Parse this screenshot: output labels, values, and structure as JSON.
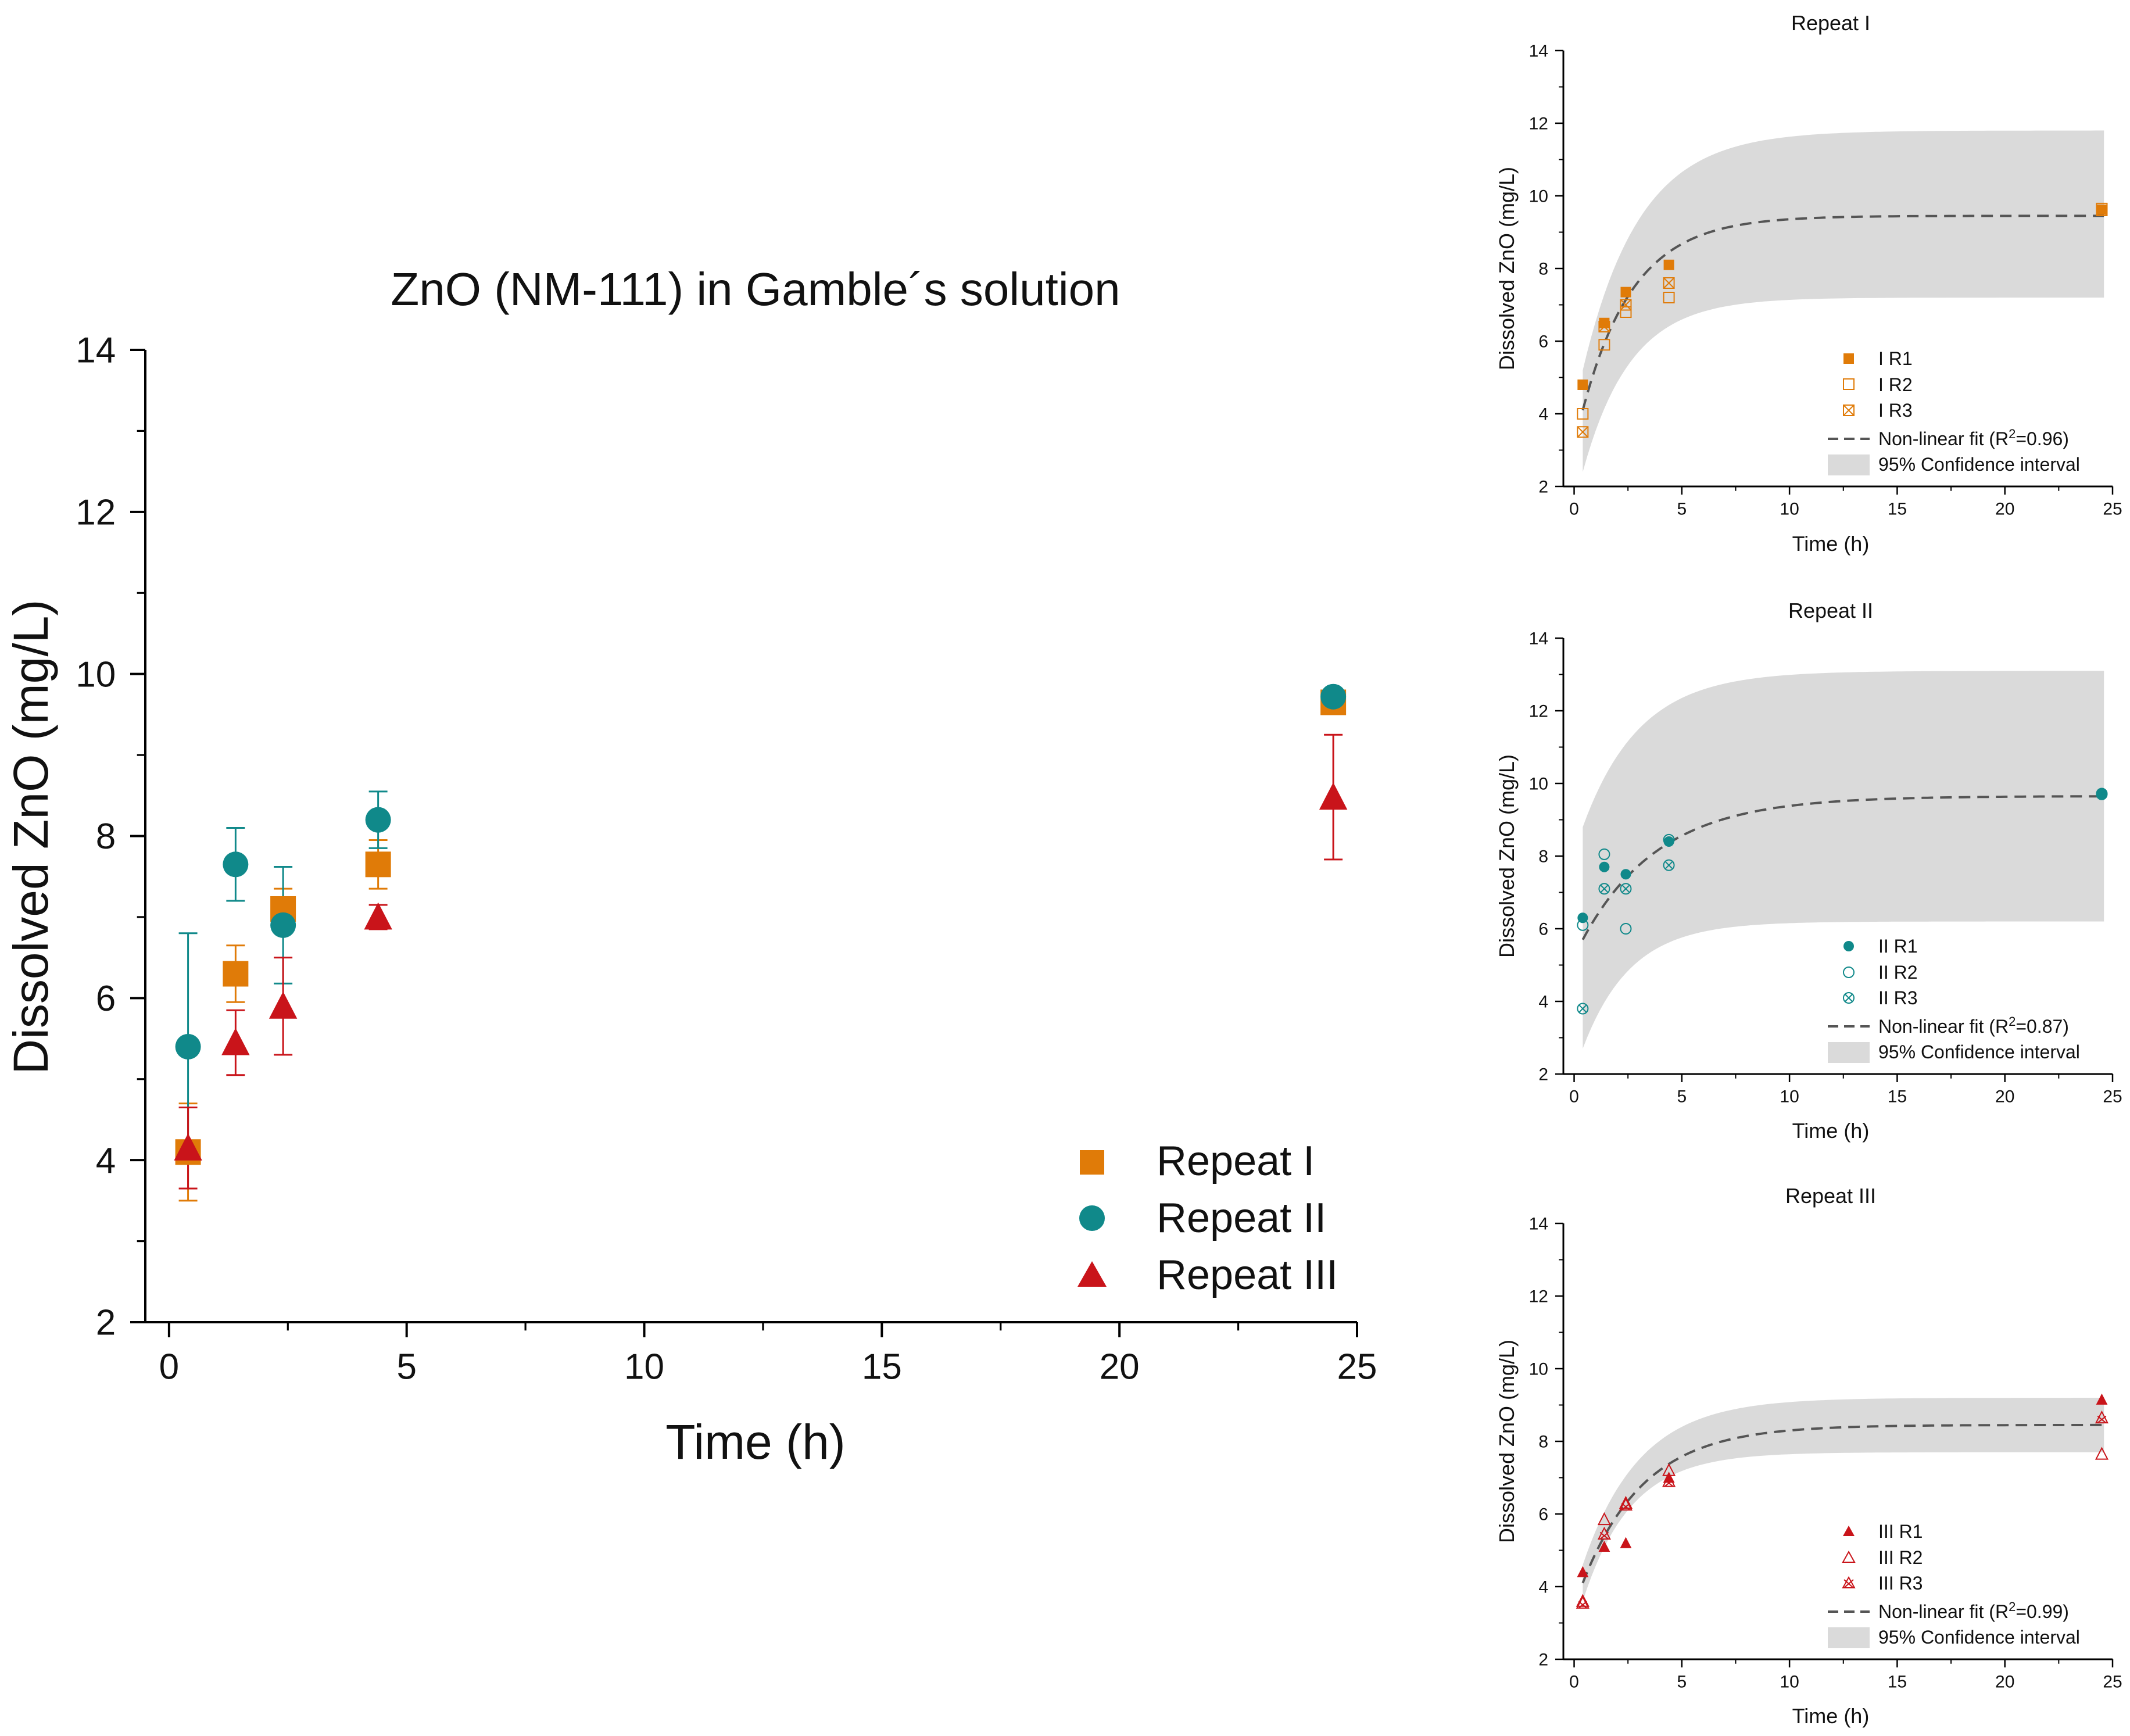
{
  "colors": {
    "repeat_I": "#e07b08",
    "repeat_II": "#10898a",
    "repeat_III": "#c9141a",
    "fit": "#555555",
    "ci": "#dadada"
  },
  "chart_data": [
    {
      "type": "scatter",
      "title": "ZnO (NM-111) in Gamble´s solution",
      "xlabel": "Time (h)",
      "ylabel": "Dissolved ZnO (mg/L)",
      "xlim": [
        -0.5,
        25
      ],
      "ylim": [
        2,
        14
      ],
      "xticks": [
        "0",
        "5",
        "10",
        "15",
        "20",
        "25"
      ],
      "yticks": [
        "2",
        "4",
        "6",
        "8",
        "10",
        "12",
        "14"
      ],
      "legend_position": "bottom-right",
      "error_bars": true,
      "series": [
        {
          "name": "Repeat I",
          "marker": "square",
          "color": "#e07b08",
          "x": [
            0.4,
            1.4,
            2.4,
            4.4,
            24.5
          ],
          "y": [
            4.1,
            6.3,
            7.1,
            7.65,
            9.65
          ],
          "err": [
            0.6,
            0.35,
            0.25,
            0.3,
            0.1
          ]
        },
        {
          "name": "Repeat II",
          "marker": "circle",
          "color": "#10898a",
          "x": [
            0.4,
            1.4,
            2.4,
            4.4,
            24.5
          ],
          "y": [
            5.4,
            7.65,
            6.9,
            8.2,
            9.72
          ],
          "err": [
            1.4,
            0.45,
            0.72,
            0.35,
            0.05
          ]
        },
        {
          "name": "Repeat III",
          "marker": "triangle",
          "color": "#c9141a",
          "x": [
            0.4,
            1.4,
            2.4,
            4.4,
            24.5
          ],
          "y": [
            4.15,
            5.45,
            5.9,
            7.0,
            8.48
          ],
          "err": [
            0.5,
            0.4,
            0.6,
            0.15,
            0.77
          ]
        }
      ]
    },
    {
      "type": "scatter",
      "title": "Repeat I",
      "xlabel": "Time (h)",
      "ylabel": "Dissolved ZnO (mg/L)",
      "xlim": [
        -0.5,
        25
      ],
      "ylim": [
        2,
        14
      ],
      "xticks": [
        "0",
        "5",
        "10",
        "15",
        "20",
        "25"
      ],
      "yticks": [
        "2",
        "4",
        "6",
        "8",
        "10",
        "12",
        "14"
      ],
      "legend_position": "bottom-right",
      "series": [
        {
          "name": "I R1",
          "marker": "square-filled",
          "color": "#e07b08",
          "x": [
            0.4,
            1.4,
            2.4,
            4.4,
            24.5
          ],
          "y": [
            4.8,
            6.5,
            7.35,
            8.1,
            9.62
          ]
        },
        {
          "name": "I R2",
          "marker": "square-open",
          "color": "#e07b08",
          "x": [
            0.4,
            1.4,
            2.4,
            4.4,
            24.5
          ],
          "y": [
            4.0,
            5.9,
            6.8,
            7.2,
            9.65
          ]
        },
        {
          "name": "I R3",
          "marker": "square-cross",
          "color": "#e07b08",
          "x": [
            0.4,
            1.4,
            2.4,
            4.4,
            24.5
          ],
          "y": [
            3.5,
            6.4,
            7.0,
            7.6,
            9.6
          ]
        }
      ],
      "fit": {
        "label": "Non-linear fit (R",
        "sup": "2",
        "r2": "=0.96)",
        "plateau": 9.45,
        "y0": 4.1,
        "k": 0.42,
        "t0": 0.4
      },
      "ci": {
        "label": "95% Confidence interval",
        "lower": 7.2,
        "upper": 11.8,
        "start_lower": 2.4,
        "start_upper": 5.2
      }
    },
    {
      "type": "scatter",
      "title": "Repeat II",
      "xlabel": "Time (h)",
      "ylabel": "Dissolved ZnO (mg/L)",
      "xlim": [
        -0.5,
        25
      ],
      "ylim": [
        2,
        14
      ],
      "xticks": [
        "0",
        "5",
        "10",
        "15",
        "20",
        "25"
      ],
      "yticks": [
        "2",
        "4",
        "6",
        "8",
        "10",
        "12",
        "14"
      ],
      "legend_position": "bottom-right",
      "series": [
        {
          "name": "II R1",
          "marker": "circle-filled",
          "color": "#10898a",
          "x": [
            0.4,
            1.4,
            2.4,
            4.4,
            24.5
          ],
          "y": [
            6.3,
            7.7,
            7.5,
            8.4,
            9.72
          ]
        },
        {
          "name": "II R2",
          "marker": "circle-open",
          "color": "#10898a",
          "x": [
            0.4,
            1.4,
            2.4,
            4.4,
            24.5
          ],
          "y": [
            6.1,
            8.05,
            6.0,
            8.45,
            9.7
          ]
        },
        {
          "name": "II R3",
          "marker": "circle-cross",
          "color": "#10898a",
          "x": [
            0.4,
            1.4,
            2.4,
            4.4,
            24.5
          ],
          "y": [
            3.8,
            7.1,
            7.1,
            7.75,
            9.72
          ]
        }
      ],
      "fit": {
        "label": "Non-linear fit (R",
        "sup": "2",
        "r2": "=0.87)",
        "plateau": 9.65,
        "y0": 5.7,
        "k": 0.28,
        "t0": 0.4
      },
      "ci": {
        "label": "95% Confidence interval",
        "lower": 6.2,
        "upper": 13.1,
        "start_lower": 2.7,
        "start_upper": 8.8
      }
    },
    {
      "type": "scatter",
      "title": "Repeat III",
      "xlabel": "Time (h)",
      "ylabel": "Dissolved ZnO (mg/L)",
      "xlim": [
        -0.5,
        25
      ],
      "ylim": [
        2,
        14
      ],
      "xticks": [
        "0",
        "5",
        "10",
        "15",
        "20",
        "25"
      ],
      "yticks": [
        "2",
        "4",
        "6",
        "8",
        "10",
        "12",
        "14"
      ],
      "legend_position": "bottom-right",
      "series": [
        {
          "name": "III R1",
          "marker": "triangle-filled",
          "color": "#c9141a",
          "x": [
            0.4,
            1.4,
            2.4,
            4.4,
            24.5
          ],
          "y": [
            4.4,
            5.1,
            5.2,
            7.0,
            9.15
          ]
        },
        {
          "name": "III R2",
          "marker": "triangle-open",
          "color": "#c9141a",
          "x": [
            0.4,
            1.4,
            2.4,
            4.4,
            24.5
          ],
          "y": [
            3.6,
            5.85,
            6.3,
            7.2,
            7.65
          ]
        },
        {
          "name": "III R3",
          "marker": "triangle-cross",
          "color": "#c9141a",
          "x": [
            0.4,
            1.4,
            2.4,
            4.4,
            24.5
          ],
          "y": [
            3.55,
            5.45,
            6.25,
            6.9,
            8.65
          ]
        }
      ],
      "fit": {
        "label": "Non-linear fit (R",
        "sup": "2",
        "r2": "=0.99)",
        "plateau": 8.45,
        "y0": 4.1,
        "k": 0.35,
        "t0": 0.4
      },
      "ci": {
        "label": "95% Confidence interval",
        "lower": 7.7,
        "upper": 9.2,
        "start_lower": 3.6,
        "start_upper": 4.6
      }
    }
  ]
}
